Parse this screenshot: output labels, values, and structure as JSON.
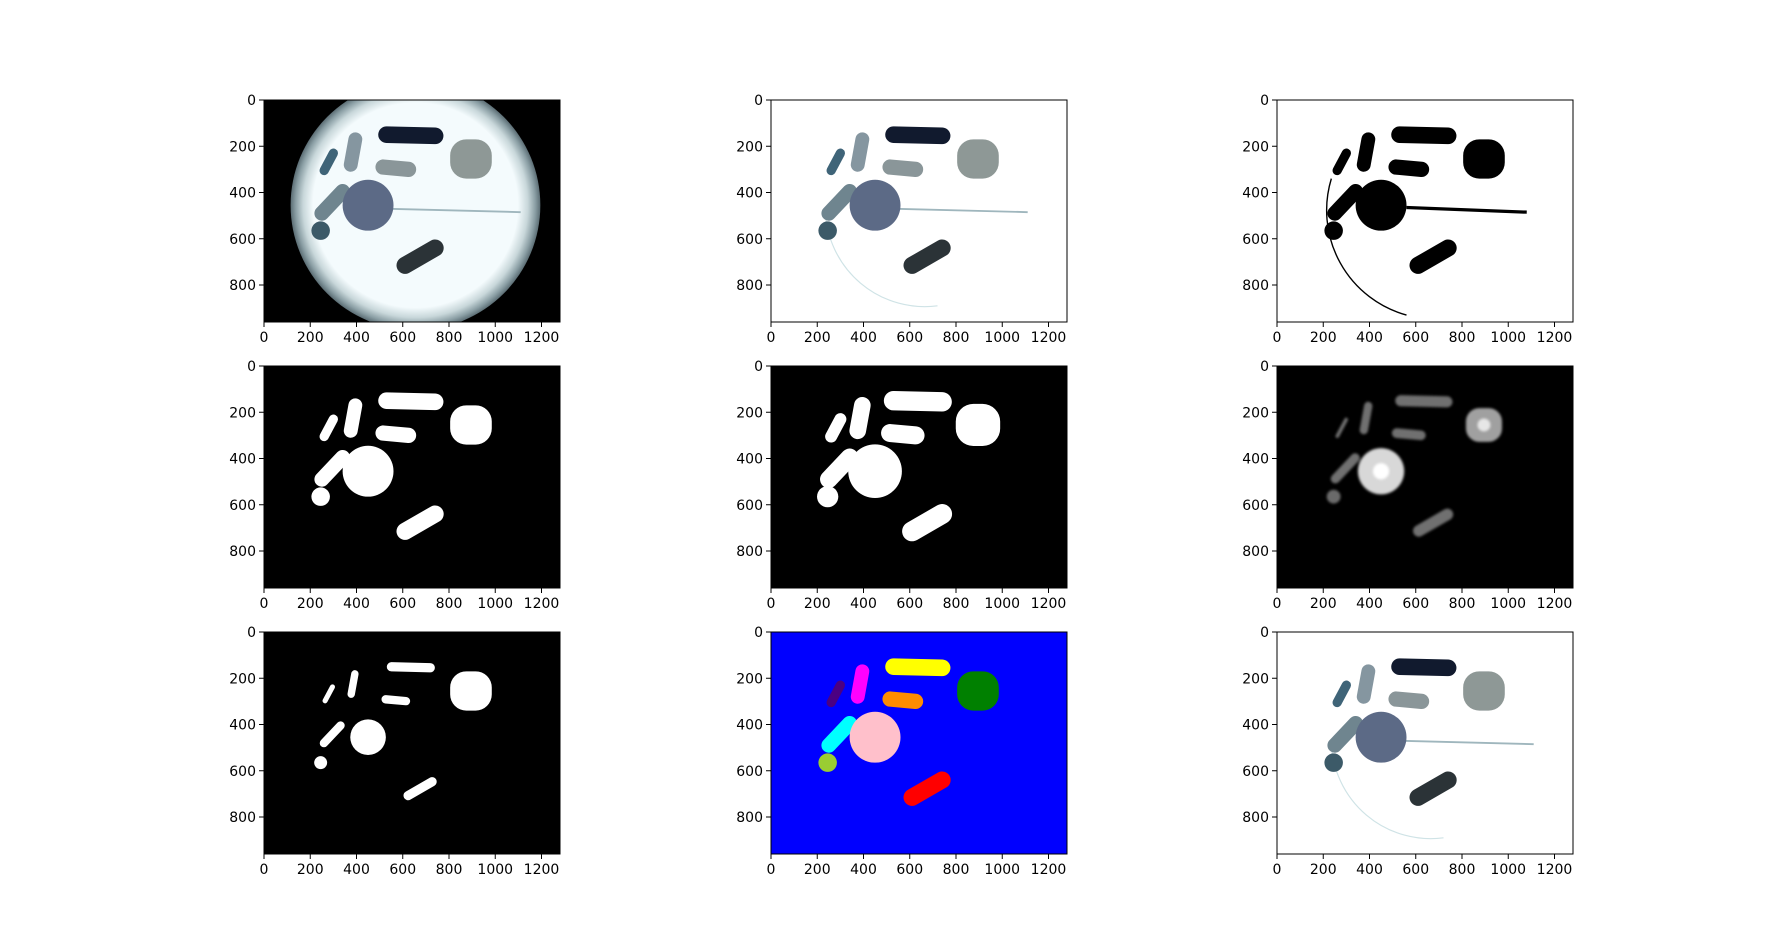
{
  "figure": {
    "panels": [
      {
        "id": "original-photo",
        "kind": "photo-bg"
      },
      {
        "id": "background-removed",
        "kind": "photo-white"
      },
      {
        "id": "binary-threshold",
        "kind": "threshold"
      },
      {
        "id": "filled-mask",
        "kind": "mask"
      },
      {
        "id": "dilated-mask",
        "kind": "mask-dilated"
      },
      {
        "id": "distance-transform",
        "kind": "distance"
      },
      {
        "id": "eroded-markers",
        "kind": "markers"
      },
      {
        "id": "watershed-labels",
        "kind": "labels"
      },
      {
        "id": "segmented-result",
        "kind": "photo-white"
      }
    ],
    "axes": {
      "x_ticks": [
        "0",
        "200",
        "400",
        "600",
        "800",
        "1000",
        "1200"
      ],
      "y_ticks": [
        "0",
        "200",
        "400",
        "600",
        "800"
      ],
      "x_tick_values": [
        0,
        200,
        400,
        600,
        800,
        1000,
        1200
      ],
      "y_tick_values": [
        0,
        200,
        400,
        600,
        800
      ],
      "x_range": [
        0,
        1280
      ],
      "y_range": [
        0,
        960
      ]
    },
    "colors": {
      "label_background": "#0000ff",
      "label_yellow": "#ffff00",
      "label_magenta": "#ff00ff",
      "label_purple": "#4b0082",
      "label_orange": "#ff8c00",
      "label_green": "#008000",
      "label_cyan": "#00ffff",
      "label_pink": "#ffc0cb",
      "label_yellowgreen": "#9acd32",
      "label_red": "#ff0000"
    },
    "objects": [
      {
        "name": "top-capsule",
        "type": "capsule",
        "x1": 530,
        "y1": 150,
        "x2": 740,
        "y2": 155,
        "r": 36,
        "color": "#111a2e",
        "label": "label_yellow"
      },
      {
        "name": "vertical-capsule",
        "type": "capsule",
        "x1": 395,
        "y1": 170,
        "x2": 375,
        "y2": 280,
        "r": 30,
        "color": "#8596a0",
        "label": "label_magenta"
      },
      {
        "name": "small-tilted-pill",
        "type": "capsule",
        "x1": 300,
        "y1": 230,
        "x2": 260,
        "y2": 305,
        "r": 20,
        "color": "#3f6478",
        "label": "label_purple"
      },
      {
        "name": "middle-capsule",
        "type": "capsule",
        "x1": 515,
        "y1": 290,
        "x2": 625,
        "y2": 300,
        "r": 33,
        "color": "#8a9699",
        "label": "label_orange"
      },
      {
        "name": "right-round-pill",
        "type": "roundrect",
        "cx": 895,
        "cy": 255,
        "w": 180,
        "h": 170,
        "rad": 70,
        "color": "#8e9896",
        "label": "label_green"
      },
      {
        "name": "diagonal-capsule",
        "type": "capsule",
        "x1": 340,
        "y1": 395,
        "x2": 250,
        "y2": 490,
        "r": 32,
        "color": "#6f858f",
        "label": "label_cyan"
      },
      {
        "name": "large-round-tablet",
        "type": "circle",
        "cx": 450,
        "cy": 455,
        "r": 110,
        "color": "#5c6a86",
        "label": "label_pink"
      },
      {
        "name": "small-round-pill",
        "type": "circle",
        "cx": 245,
        "cy": 565,
        "r": 40,
        "color": "#3c5a68",
        "label": "label_yellowgreen"
      },
      {
        "name": "bottom-capsule",
        "type": "capsule",
        "x1": 610,
        "y1": 715,
        "x2": 740,
        "y2": 640,
        "r": 37,
        "color": "#2b3337",
        "label": "label_red"
      }
    ]
  }
}
